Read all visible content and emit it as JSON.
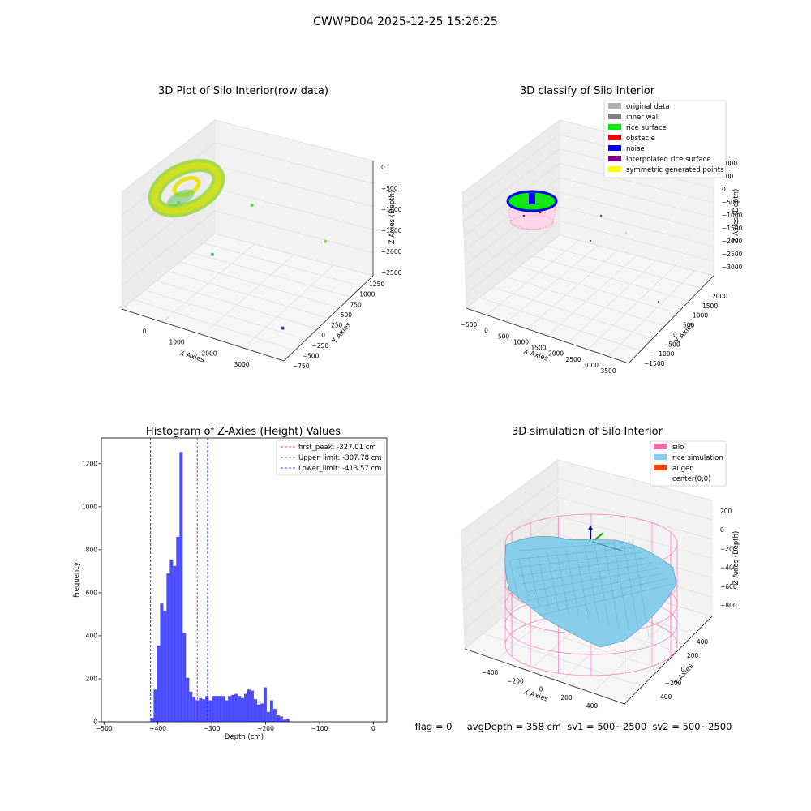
{
  "figure": {
    "suptitle": "CWWPD04 2025-12-25 15:26:25",
    "status_line": "flag = 0     avgDepth = 358 cm  sv1 = 500~2500  sv2 = 500~2500"
  },
  "chart_data": [
    {
      "id": "raw",
      "type": "scatter",
      "title": "3D Plot of Silo Interior(row data)",
      "xlabel": "X Axies",
      "ylabel": "Y Axies",
      "zlabel": "Z Axies (Depth)",
      "xticks": [
        "0",
        "1000",
        "2000",
        "3000"
      ],
      "yticks": [
        "−750",
        "−500",
        "−250",
        "0",
        "250",
        "500",
        "750",
        "1000",
        "1250"
      ],
      "zticks": [
        "−2500",
        "−2000",
        "−1500",
        "−1000",
        "−500",
        "0"
      ],
      "xlim": [
        -400,
        3600
      ],
      "ylim": [
        -800,
        1300
      ],
      "zlim": [
        -2800,
        100
      ],
      "points": [
        {
          "x": 1500,
          "y": 400,
          "z": -650,
          "color": "#6acd5c"
        },
        {
          "x": 3200,
          "y": 500,
          "z": -1100,
          "color": "#8ad460"
        },
        {
          "x": 1400,
          "y": -400,
          "z": -1200,
          "color": "#3fae72"
        },
        {
          "x": 3300,
          "y": -550,
          "z": -2300,
          "color": "#5a1f74"
        },
        {
          "x": -200,
          "y": 300,
          "z": -1050,
          "color": "#6acd5c"
        }
      ]
    },
    {
      "id": "classify",
      "type": "scatter",
      "title": "3D classify of Silo Interior",
      "xlabel": "X Axies",
      "ylabel": "Y Axies",
      "zlabel": "Z Axies (Depth)",
      "xticks": [
        "−500",
        "0",
        "500",
        "1000",
        "1500",
        "2000",
        "2500",
        "3000",
        "3500"
      ],
      "yticks": [
        "−1500",
        "−1000",
        "−500",
        "0",
        "500",
        "1000",
        "1500",
        "2000"
      ],
      "zticks": [
        "−3000",
        "−2500",
        "−2000",
        "−1500",
        "−1000",
        "−500",
        "0",
        "500",
        "1000"
      ],
      "legend": [
        {
          "label": "original data",
          "color": "#b0b0b0"
        },
        {
          "label": "inner wall",
          "color": "#808080"
        },
        {
          "label": "rice surface",
          "color": "#00ee00"
        },
        {
          "label": "obstacle",
          "color": "#ee0000"
        },
        {
          "label": "noise",
          "color": "#0000ee"
        },
        {
          "label": "interpolated rice surface",
          "color": "#800080"
        },
        {
          "label": "symmetric generated points",
          "color": "#ffff00"
        }
      ]
    },
    {
      "id": "histogram",
      "type": "bar",
      "title": "Histogram of Z-Axies (Height) Values",
      "xlabel": "Depth (cm)",
      "ylabel": "Frequency",
      "xlim": [
        -505,
        25
      ],
      "ylim": [
        0,
        1320
      ],
      "xticks": [
        -500,
        -400,
        -300,
        -200,
        -100,
        0
      ],
      "xtick_labels": [
        "−500",
        "−400",
        "−300",
        "−200",
        "−100",
        "0"
      ],
      "yticks": [
        0,
        200,
        400,
        600,
        800,
        1000,
        1200
      ],
      "bin_start": -420,
      "bin_width": 6,
      "values": [
        2,
        18,
        150,
        355,
        550,
        515,
        690,
        755,
        725,
        860,
        1255,
        415,
        205,
        140,
        115,
        100,
        110,
        105,
        120,
        100,
        120,
        120,
        120,
        120,
        100,
        120,
        125,
        130,
        120,
        110,
        130,
        150,
        145,
        105,
        80,
        85,
        160,
        45,
        100,
        60,
        30,
        25,
        10,
        15
      ],
      "bar_color": "#0000ff",
      "lines": [
        {
          "label": "first_peak: -327.01 cm",
          "x": -327.01,
          "color": "#ff0000"
        },
        {
          "label": "Upper_limit: -307.78 cm",
          "x": -307.78,
          "color": "#0000ff"
        },
        {
          "label": "Lower_limit: -413.57 cm",
          "x": -413.57,
          "color": "#0000ff"
        }
      ]
    },
    {
      "id": "simulation",
      "type": "surface",
      "title": "3D simulation of Silo Interior",
      "xlabel": "X Axies",
      "ylabel": "Y Axies",
      "zlabel": "Z Axies (Depth)",
      "xticks": [
        "−400",
        "−200",
        "0",
        "200",
        "400"
      ],
      "yticks": [
        "−400",
        "−200",
        "0",
        "200",
        "400"
      ],
      "zticks": [
        "−800",
        "−600",
        "−400",
        "−200",
        "0",
        "200"
      ],
      "legend": [
        {
          "label": "silo",
          "color": "#ff69b4"
        },
        {
          "label": "rice simulation",
          "color": "#87ceeb"
        },
        {
          "label": "auger",
          "color": "#ff4500"
        },
        {
          "label": "center(0,0)",
          "color": ""
        }
      ]
    }
  ]
}
